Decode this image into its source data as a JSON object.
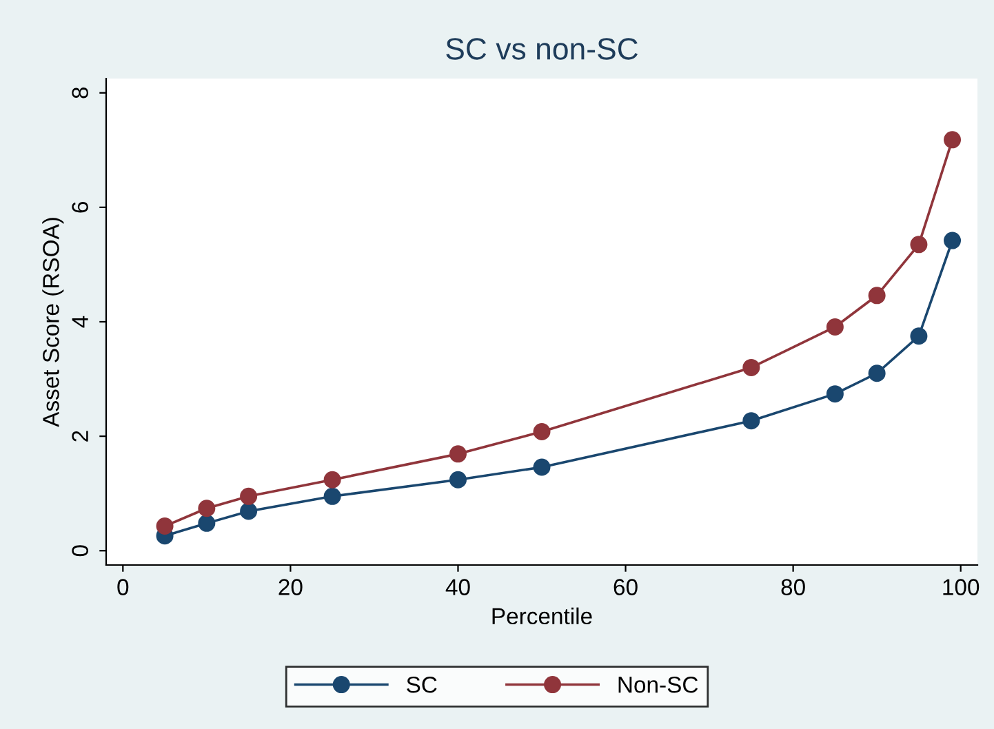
{
  "chart_data": {
    "type": "line",
    "title": "SC vs non-SC",
    "xlabel": "Percentile",
    "ylabel": "Asset Score (RSOA)",
    "x": [
      5,
      10,
      15,
      25,
      40,
      50,
      75,
      85,
      90,
      95,
      99
    ],
    "series": [
      {
        "name": "SC",
        "color": "#1a476f",
        "values": [
          0.26,
          0.48,
          0.69,
          0.95,
          1.24,
          1.46,
          2.27,
          2.74,
          3.1,
          3.75,
          5.42
        ]
      },
      {
        "name": "Non-SC",
        "color": "#90353b",
        "values": [
          0.43,
          0.74,
          0.95,
          1.24,
          1.69,
          2.08,
          3.2,
          3.91,
          4.46,
          5.35,
          7.18
        ]
      }
    ],
    "xlim": [
      -2,
      102
    ],
    "ylim": [
      -0.25,
      8.25
    ],
    "xticks": [
      0,
      20,
      40,
      60,
      80,
      100
    ],
    "yticks": [
      0,
      2,
      4,
      6,
      8
    ],
    "grid": false,
    "legend": "bottom",
    "marker": "circle",
    "line_style": "solid"
  }
}
